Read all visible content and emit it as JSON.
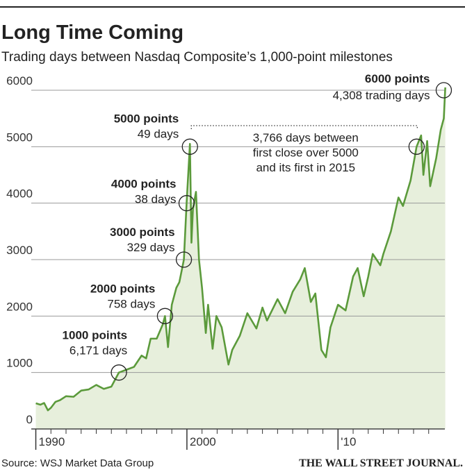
{
  "chart_data": {
    "type": "line",
    "title": "Long Time Coming",
    "subtitle": "Trading days between Nasdaq Composite’s 1,000-point milestones",
    "source": "Source: WSJ Market Data Group",
    "brand": "THE WALL STREET JOURNAL.",
    "color": "#5b9a3b",
    "fill": "#e7efdc",
    "x": [
      1990.0,
      1990.3,
      1990.55,
      1990.8,
      1991.0,
      1991.3,
      1991.6,
      1992.0,
      1992.5,
      1993.0,
      1993.5,
      1994.0,
      1994.5,
      1995.0,
      1995.5,
      1996.0,
      1996.5,
      1997.0,
      1997.3,
      1997.6,
      1998.0,
      1998.4,
      1998.55,
      1998.75,
      1999.0,
      1999.3,
      1999.5,
      1999.8,
      1999.98,
      2000.2,
      2000.3,
      2000.4,
      2000.6,
      2000.8,
      2001.0,
      2001.25,
      2001.4,
      2001.7,
      2001.95,
      2002.3,
      2002.75,
      2003.0,
      2003.5,
      2004.0,
      2004.6,
      2005.0,
      2005.3,
      2006.0,
      2006.5,
      2007.0,
      2007.5,
      2007.8,
      2008.2,
      2008.5,
      2008.9,
      2009.2,
      2009.5,
      2010.0,
      2010.5,
      2011.0,
      2011.3,
      2011.7,
      2012.0,
      2012.3,
      2012.8,
      2013.0,
      2013.5,
      2014.0,
      2014.3,
      2014.8,
      2015.0,
      2015.2,
      2015.5,
      2015.65,
      2015.9,
      2016.1,
      2016.5,
      2016.8,
      2017.0,
      2017.1
    ],
    "values": [
      455,
      430,
      460,
      330,
      375,
      480,
      510,
      580,
      570,
      680,
      700,
      780,
      710,
      750,
      1000,
      1050,
      1100,
      1300,
      1250,
      1600,
      1600,
      1850,
      2000,
      1450,
      2200,
      2500,
      2600,
      3000,
      4000,
      5050,
      3300,
      3900,
      4200,
      3000,
      2500,
      1700,
      2200,
      1420,
      2000,
      1800,
      1140,
      1400,
      1650,
      2050,
      1780,
      2150,
      1920,
      2300,
      2050,
      2430,
      2650,
      2850,
      2250,
      2400,
      1400,
      1270,
      1800,
      2200,
      2100,
      2700,
      2850,
      2350,
      2700,
      3100,
      2900,
      3100,
      3500,
      4100,
      3950,
      4400,
      4700,
      5000,
      5200,
      4500,
      5100,
      4300,
      4800,
      5300,
      5500,
      6050
    ],
    "xlim": [
      1989.7,
      2017.3
    ],
    "xticks": [
      1990,
      2000,
      {
        "value": 2010,
        "label": "'10"
      }
    ],
    "xminorticks": [
      1991,
      1992,
      1993,
      1994,
      1995,
      1996,
      1997,
      1998,
      1999,
      2001,
      2002,
      2003,
      2004,
      2005,
      2006,
      2007,
      2008,
      2009,
      2011,
      2012,
      2013,
      2014,
      2015,
      2016
    ],
    "ylim": [
      0,
      6300
    ],
    "yticks": [
      0,
      1000,
      2000,
      3000,
      4000,
      5000,
      6000
    ],
    "grid": true,
    "annotations": [
      {
        "label": "1000 points",
        "note": "6,171 days",
        "x": 1995.5,
        "y": 1000
      },
      {
        "label": "2000 points",
        "note": "758 days",
        "x": 1998.55,
        "y": 2000
      },
      {
        "label": "3000 points",
        "note": "329 days",
        "x": 1999.8,
        "y": 3000
      },
      {
        "label": "4000 points",
        "note": "38 days",
        "x": 1999.98,
        "y": 4000
      },
      {
        "label": "5000 points",
        "note": "49 days",
        "x": 2000.2,
        "y": 5000
      },
      {
        "x": 2015.2,
        "y": 5000
      },
      {
        "label": "6000 points",
        "note": "4,308 trading days",
        "x": 2017.0,
        "y": 6000
      }
    ],
    "span_note": [
      "3,766 days between",
      "first close over 5000",
      "and its first in 2015"
    ]
  }
}
